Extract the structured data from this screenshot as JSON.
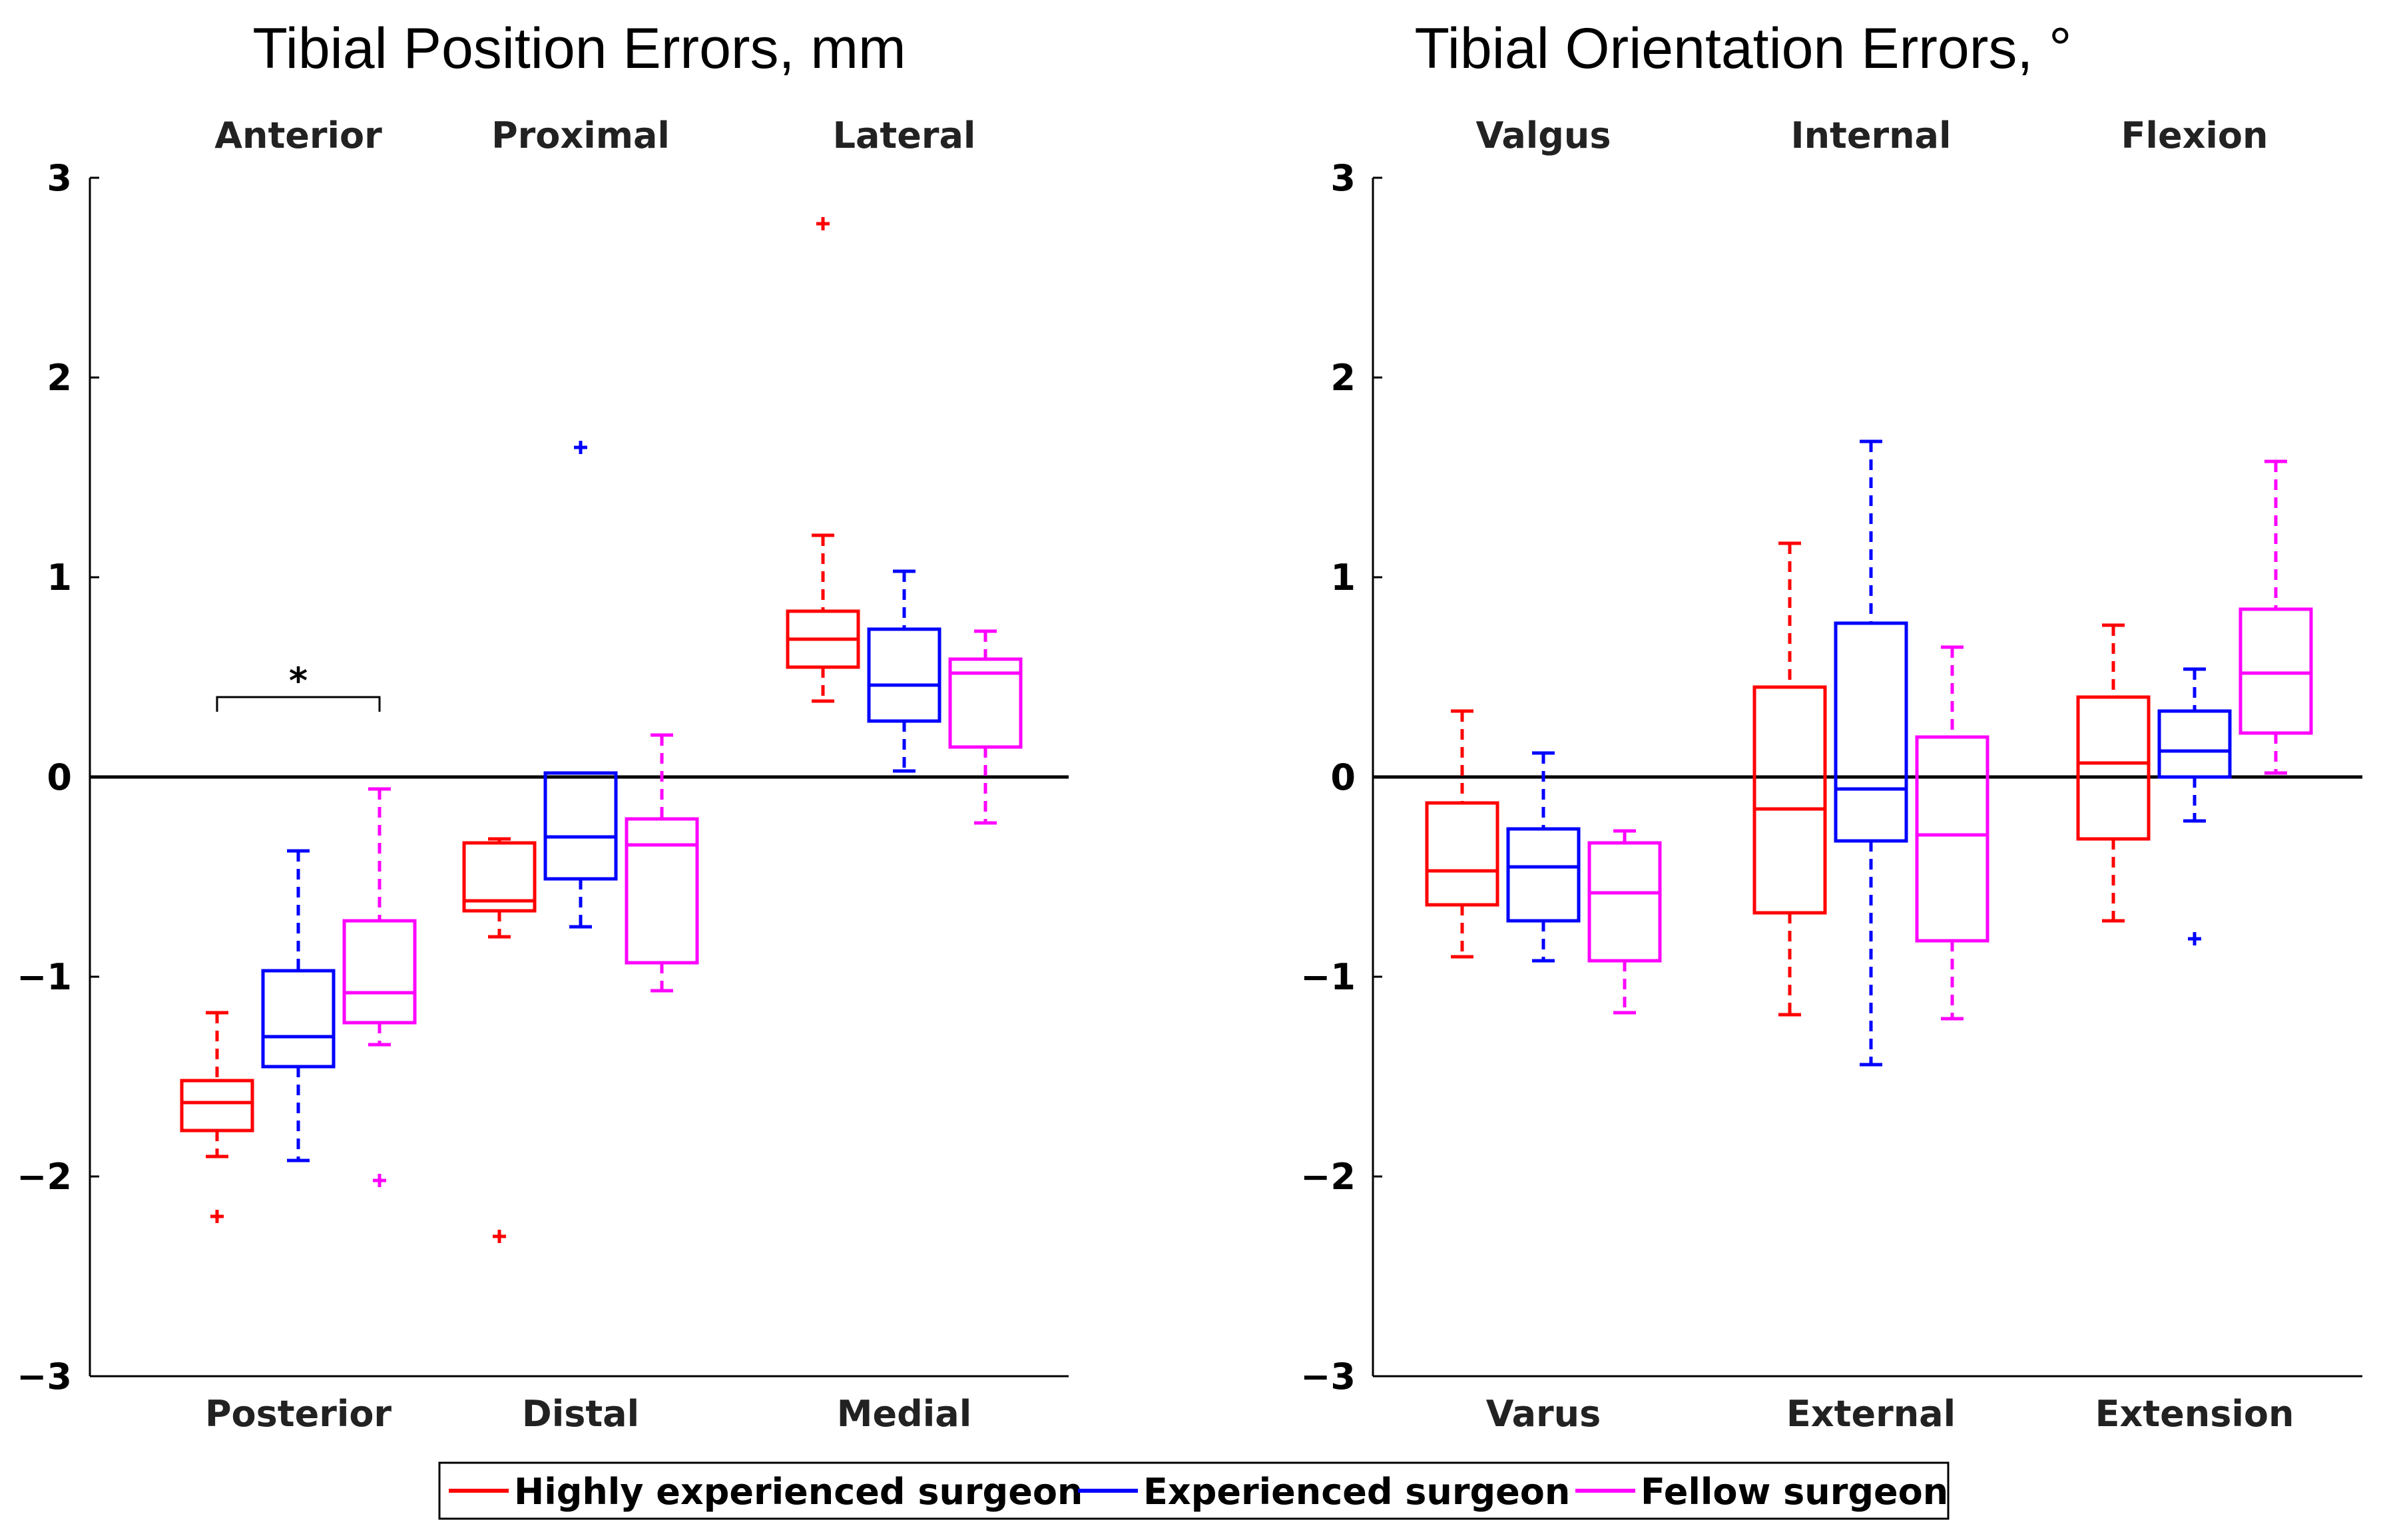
{
  "colors": {
    "highly": "#ff0000",
    "experienced": "#0000ff",
    "fellow": "#ff00ff",
    "axis": "#000000"
  },
  "legend": {
    "items": [
      {
        "key": "highly",
        "label": "Highly experienced surgeon"
      },
      {
        "key": "experienced",
        "label": "Experienced surgeon"
      },
      {
        "key": "fellow",
        "label": "Fellow surgeon"
      }
    ]
  },
  "chart_data": [
    {
      "type": "boxplot",
      "title": "Tibial Position Errors, mm",
      "ylim": [
        -3,
        3
      ],
      "yticks": [
        "3",
        "2",
        "1",
        "0",
        "−1",
        "−2",
        "−3"
      ],
      "top_labels": [
        "Anterior",
        "Proximal",
        "Lateral"
      ],
      "bottom_labels": [
        "Posterior",
        "Distal",
        "Medial"
      ],
      "significance": {
        "group": 0,
        "from": "highly",
        "to": "fellow",
        "y": 0.4,
        "label": "*"
      },
      "groups": [
        {
          "boxes": [
            {
              "series": "highly",
              "whisker_low": -1.9,
              "q1": -1.77,
              "median": -1.63,
              "q3": -1.52,
              "whisker_high": -1.18,
              "outliers": [
                -2.2
              ]
            },
            {
              "series": "experienced",
              "whisker_low": -1.92,
              "q1": -1.45,
              "median": -1.3,
              "q3": -0.97,
              "whisker_high": -0.37,
              "outliers": []
            },
            {
              "series": "fellow",
              "whisker_low": -1.34,
              "q1": -1.23,
              "median": -1.08,
              "q3": -0.72,
              "whisker_high": -0.06,
              "outliers": [
                -2.02
              ]
            }
          ]
        },
        {
          "boxes": [
            {
              "series": "highly",
              "whisker_low": -0.8,
              "q1": -0.67,
              "median": -0.62,
              "q3": -0.33,
              "whisker_high": -0.31,
              "outliers": [
                -2.3
              ]
            },
            {
              "series": "experienced",
              "whisker_low": -0.75,
              "q1": -0.51,
              "median": -0.3,
              "q3": 0.02,
              "whisker_high": 0.02,
              "outliers": [
                1.65
              ]
            },
            {
              "series": "fellow",
              "whisker_low": -1.07,
              "q1": -0.93,
              "median": -0.34,
              "q3": -0.21,
              "whisker_high": 0.21,
              "outliers": []
            }
          ]
        },
        {
          "boxes": [
            {
              "series": "highly",
              "whisker_low": 0.38,
              "q1": 0.55,
              "median": 0.69,
              "q3": 0.83,
              "whisker_high": 1.21,
              "outliers": [
                2.77
              ]
            },
            {
              "series": "experienced",
              "whisker_low": 0.03,
              "q1": 0.28,
              "median": 0.46,
              "q3": 0.74,
              "whisker_high": 1.03,
              "outliers": []
            },
            {
              "series": "fellow",
              "whisker_low": -0.23,
              "q1": 0.15,
              "median": 0.52,
              "q3": 0.59,
              "whisker_high": 0.73,
              "outliers": []
            }
          ]
        }
      ]
    },
    {
      "type": "boxplot",
      "title": "Tibial Orientation Errors, °",
      "ylim": [
        -3,
        3
      ],
      "yticks": [
        "3",
        "2",
        "1",
        "0",
        "−1",
        "−2",
        "−3"
      ],
      "top_labels": [
        "Valgus",
        "Internal",
        "Flexion"
      ],
      "bottom_labels": [
        "Varus",
        "External",
        "Extension"
      ],
      "groups": [
        {
          "boxes": [
            {
              "series": "highly",
              "whisker_low": -0.9,
              "q1": -0.64,
              "median": -0.47,
              "q3": -0.13,
              "whisker_high": 0.33,
              "outliers": []
            },
            {
              "series": "experienced",
              "whisker_low": -0.92,
              "q1": -0.72,
              "median": -0.45,
              "q3": -0.26,
              "whisker_high": 0.12,
              "outliers": []
            },
            {
              "series": "fellow",
              "whisker_low": -1.18,
              "q1": -0.92,
              "median": -0.58,
              "q3": -0.33,
              "whisker_high": -0.27,
              "outliers": []
            }
          ]
        },
        {
          "boxes": [
            {
              "series": "highly",
              "whisker_low": -1.19,
              "q1": -0.68,
              "median": -0.16,
              "q3": 0.45,
              "whisker_high": 1.17,
              "outliers": []
            },
            {
              "series": "experienced",
              "whisker_low": -1.44,
              "q1": -0.32,
              "median": -0.06,
              "q3": 0.77,
              "whisker_high": 1.68,
              "outliers": []
            },
            {
              "series": "fellow",
              "whisker_low": -1.21,
              "q1": -0.82,
              "median": -0.29,
              "q3": 0.2,
              "whisker_high": 0.65,
              "outliers": []
            }
          ]
        },
        {
          "boxes": [
            {
              "series": "highly",
              "whisker_low": -0.72,
              "q1": -0.31,
              "median": 0.07,
              "q3": 0.4,
              "whisker_high": 0.76,
              "outliers": []
            },
            {
              "series": "experienced",
              "whisker_low": -0.22,
              "q1": 0.0,
              "median": 0.13,
              "q3": 0.33,
              "whisker_high": 0.54,
              "outliers": [
                -0.81
              ]
            },
            {
              "series": "fellow",
              "whisker_low": 0.02,
              "q1": 0.22,
              "median": 0.52,
              "q3": 0.84,
              "whisker_high": 1.58,
              "outliers": []
            }
          ]
        }
      ]
    }
  ]
}
